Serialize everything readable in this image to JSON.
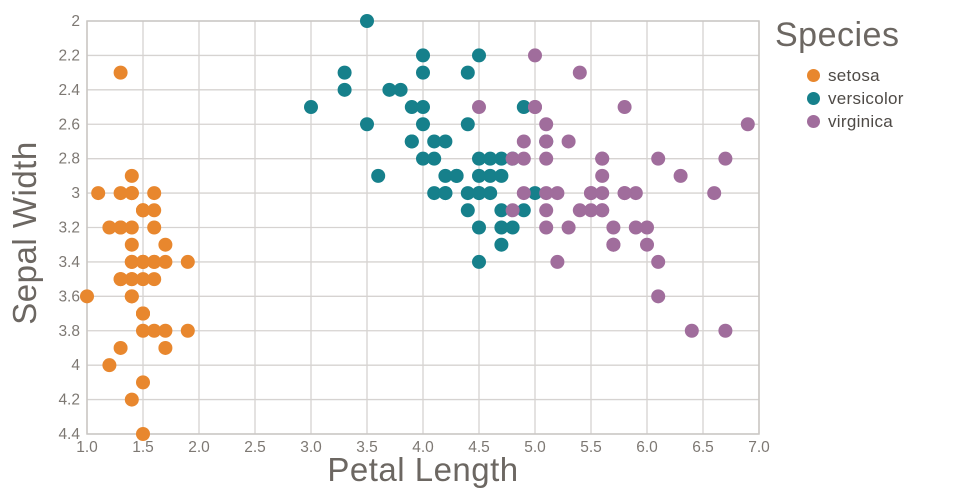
{
  "legend": {
    "title": "Species"
  },
  "chart_data": {
    "type": "scatter",
    "title": "",
    "xlabel": "Petal Length",
    "ylabel": "Sepal Width",
    "xlim": [
      1.0,
      7.0
    ],
    "ylim": [
      2.0,
      4.4
    ],
    "y_axis_inverted": true,
    "grid": true,
    "legend_position": "right",
    "x_tick_labels": [
      "1.0",
      "1.5",
      "2.0",
      "2.5",
      "3.0",
      "3.5",
      "4.0",
      "4.5",
      "5.0",
      "5.5",
      "6.0",
      "6.5",
      "7.0"
    ],
    "y_tick_labels": [
      "2",
      "2.2",
      "2.4",
      "2.6",
      "2.8",
      "3",
      "3.2",
      "3.4",
      "3.6",
      "3.8",
      "4",
      "4.2",
      "4.4"
    ],
    "colors": {
      "grid_line": "#d6d3d1",
      "panel_border": "#c9c6c3",
      "tick_label": "#7d7873",
      "axis_title": "#6c6762",
      "legend_label": "#4e4a46"
    },
    "marker_radius": 7,
    "series": [
      {
        "name": "setosa",
        "color": "#e8872e",
        "points": [
          [
            1.4,
            3.5
          ],
          [
            1.4,
            3.0
          ],
          [
            1.3,
            3.2
          ],
          [
            1.5,
            3.1
          ],
          [
            1.4,
            3.6
          ],
          [
            1.7,
            3.9
          ],
          [
            1.4,
            3.4
          ],
          [
            1.5,
            3.4
          ],
          [
            1.4,
            2.9
          ],
          [
            1.5,
            3.1
          ],
          [
            1.5,
            3.7
          ],
          [
            1.6,
            3.4
          ],
          [
            1.4,
            3.0
          ],
          [
            1.1,
            3.0
          ],
          [
            1.2,
            4.0
          ],
          [
            1.5,
            4.4
          ],
          [
            1.3,
            3.9
          ],
          [
            1.4,
            3.5
          ],
          [
            1.7,
            3.8
          ],
          [
            1.5,
            3.8
          ],
          [
            1.7,
            3.4
          ],
          [
            1.5,
            3.7
          ],
          [
            1.0,
            3.6
          ],
          [
            1.7,
            3.3
          ],
          [
            1.9,
            3.4
          ],
          [
            1.6,
            3.0
          ],
          [
            1.6,
            3.4
          ],
          [
            1.5,
            3.5
          ],
          [
            1.4,
            3.4
          ],
          [
            1.6,
            3.2
          ],
          [
            1.6,
            3.1
          ],
          [
            1.5,
            3.4
          ],
          [
            1.5,
            4.1
          ],
          [
            1.4,
            4.2
          ],
          [
            1.5,
            3.1
          ],
          [
            1.2,
            3.2
          ],
          [
            1.3,
            3.5
          ],
          [
            1.4,
            3.6
          ],
          [
            1.3,
            3.0
          ],
          [
            1.5,
            3.4
          ],
          [
            1.3,
            3.5
          ],
          [
            1.3,
            2.3
          ],
          [
            1.3,
            3.2
          ],
          [
            1.6,
            3.5
          ],
          [
            1.9,
            3.8
          ],
          [
            1.4,
            3.0
          ],
          [
            1.6,
            3.8
          ],
          [
            1.4,
            3.2
          ],
          [
            1.5,
            3.7
          ],
          [
            1.4,
            3.3
          ]
        ]
      },
      {
        "name": "versicolor",
        "color": "#16808b",
        "points": [
          [
            4.7,
            3.2
          ],
          [
            4.5,
            3.2
          ],
          [
            4.9,
            3.1
          ],
          [
            4.0,
            2.3
          ],
          [
            4.6,
            2.8
          ],
          [
            4.5,
            2.8
          ],
          [
            4.7,
            3.3
          ],
          [
            3.3,
            2.4
          ],
          [
            4.6,
            2.9
          ],
          [
            3.9,
            2.7
          ],
          [
            3.5,
            2.0
          ],
          [
            4.2,
            3.0
          ],
          [
            4.0,
            2.2
          ],
          [
            4.7,
            2.9
          ],
          [
            3.6,
            2.9
          ],
          [
            4.4,
            3.1
          ],
          [
            4.5,
            3.0
          ],
          [
            4.1,
            2.7
          ],
          [
            4.5,
            2.2
          ],
          [
            3.9,
            2.5
          ],
          [
            4.8,
            3.2
          ],
          [
            4.0,
            2.8
          ],
          [
            4.9,
            2.5
          ],
          [
            4.7,
            2.8
          ],
          [
            4.3,
            2.9
          ],
          [
            4.4,
            3.0
          ],
          [
            4.8,
            2.8
          ],
          [
            5.0,
            3.0
          ],
          [
            4.5,
            2.9
          ],
          [
            3.5,
            2.6
          ],
          [
            3.8,
            2.4
          ],
          [
            3.7,
            2.4
          ],
          [
            3.9,
            2.7
          ],
          [
            5.1,
            2.7
          ],
          [
            4.5,
            3.0
          ],
          [
            4.5,
            3.4
          ],
          [
            4.7,
            3.1
          ],
          [
            4.4,
            2.3
          ],
          [
            4.1,
            3.0
          ],
          [
            4.0,
            2.5
          ],
          [
            4.4,
            2.6
          ],
          [
            4.6,
            3.0
          ],
          [
            4.0,
            2.6
          ],
          [
            3.3,
            2.3
          ],
          [
            4.2,
            2.7
          ],
          [
            4.2,
            3.0
          ],
          [
            4.2,
            2.9
          ],
          [
            4.3,
            2.9
          ],
          [
            3.0,
            2.5
          ],
          [
            4.1,
            2.8
          ]
        ]
      },
      {
        "name": "virginica",
        "color": "#a06d9c",
        "points": [
          [
            6.0,
            3.3
          ],
          [
            5.1,
            2.7
          ],
          [
            5.9,
            3.0
          ],
          [
            5.6,
            2.9
          ],
          [
            5.8,
            3.0
          ],
          [
            6.6,
            3.0
          ],
          [
            4.5,
            2.5
          ],
          [
            6.3,
            2.9
          ],
          [
            5.8,
            2.5
          ],
          [
            6.1,
            3.6
          ],
          [
            5.1,
            3.2
          ],
          [
            5.3,
            2.7
          ],
          [
            5.5,
            3.0
          ],
          [
            5.0,
            2.5
          ],
          [
            5.1,
            2.8
          ],
          [
            5.3,
            3.2
          ],
          [
            5.5,
            3.0
          ],
          [
            6.7,
            3.8
          ],
          [
            6.9,
            2.6
          ],
          [
            5.0,
            2.2
          ],
          [
            5.7,
            3.2
          ],
          [
            4.9,
            2.8
          ],
          [
            6.7,
            2.8
          ],
          [
            4.9,
            2.7
          ],
          [
            5.7,
            3.3
          ],
          [
            6.0,
            3.2
          ],
          [
            4.8,
            2.8
          ],
          [
            4.9,
            3.0
          ],
          [
            5.6,
            2.8
          ],
          [
            5.8,
            3.0
          ],
          [
            6.1,
            2.8
          ],
          [
            6.4,
            3.8
          ],
          [
            5.6,
            2.8
          ],
          [
            5.1,
            2.6
          ],
          [
            5.6,
            3.0
          ],
          [
            6.1,
            3.4
          ],
          [
            5.6,
            3.1
          ],
          [
            5.5,
            3.1
          ],
          [
            4.8,
            3.1
          ],
          [
            5.4,
            3.1
          ],
          [
            5.6,
            3.1
          ],
          [
            5.1,
            3.1
          ],
          [
            5.1,
            2.7
          ],
          [
            5.9,
            3.2
          ],
          [
            5.7,
            3.3
          ],
          [
            5.2,
            3.0
          ],
          [
            5.0,
            2.5
          ],
          [
            5.2,
            3.4
          ],
          [
            5.4,
            2.3
          ],
          [
            5.1,
            3.0
          ]
        ]
      }
    ]
  }
}
